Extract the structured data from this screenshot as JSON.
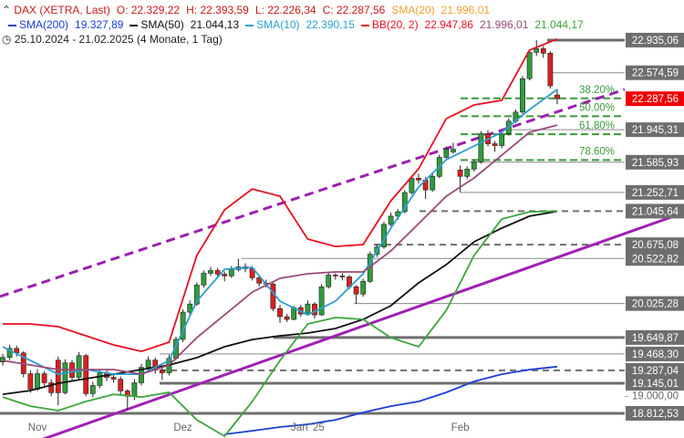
{
  "chart_data": {
    "type": "candlestick",
    "title": "DAX (XETRA, Last)",
    "ohlc_text": [
      "O: 22.329,22",
      "H: 22.393,59",
      "L: 22.226,34",
      "C: 22.287,56"
    ],
    "period": "25.10.2024 - 21.02.2025 (4 Monate, 1 Tag)",
    "categories": [
      null,
      null,
      null,
      null,
      null,
      "Nov",
      null,
      null,
      null,
      null,
      null,
      null,
      null,
      null,
      null,
      null,
      null,
      null,
      null,
      null,
      null,
      null,
      null,
      null,
      null,
      null,
      "Dez",
      null,
      null,
      null,
      null,
      null,
      null,
      null,
      null,
      null,
      null,
      null,
      null,
      null,
      null,
      null,
      null,
      null,
      "Jan '25",
      null,
      null,
      null,
      null,
      null,
      null,
      null,
      null,
      null,
      null,
      null,
      null,
      null,
      null,
      null,
      null,
      null,
      null,
      null,
      null,
      null,
      "Feb",
      null,
      null,
      null,
      null,
      null,
      null,
      null,
      null,
      null,
      null,
      null,
      null,
      null,
      null
    ],
    "open": [
      19380,
      19430,
      19530,
      19480,
      19250,
      19080,
      19250,
      19150,
      19400,
      19040,
      19370,
      19210,
      19450,
      19030,
      19120,
      19260,
      19210,
      19190,
      19060,
      19000,
      19150,
      19320,
      19400,
      19290,
      19260,
      19420,
      19630,
      19930,
      20020,
      20230,
      20360,
      20390,
      20350,
      20330,
      20400,
      20430,
      20410,
      20310,
      20250,
      20240,
      19970,
      19880,
      19850,
      19980,
      19910,
      20020,
      19900,
      20210,
      20340,
      20330,
      20320,
      20210,
      20130,
      20270,
      20570,
      20650,
      20900,
      20990,
      21040,
      21250,
      21410,
      21390,
      21280,
      21430,
      21640,
      21700,
      21500,
      21430,
      21510,
      21590,
      21900,
      21790,
      21770,
      21900,
      22040,
      22140,
      22510,
      22800,
      22840,
      22790,
      22329.22
    ],
    "high": [
      19470,
      19570,
      19560,
      19500,
      19290,
      19300,
      19280,
      19190,
      19440,
      19410,
      19400,
      19490,
      19470,
      19160,
      19300,
      19290,
      19250,
      19220,
      19080,
      19190,
      19360,
      19440,
      19430,
      19330,
      19460,
      19660,
      19960,
      20060,
      20260,
      20390,
      20430,
      20420,
      20380,
      20440,
      20520,
      20470,
      20440,
      20340,
      20290,
      20260,
      20010,
      19910,
      20000,
      20010,
      20060,
      20040,
      20240,
      20370,
      20360,
      20360,
      20340,
      20230,
      20300,
      20600,
      20680,
      20930,
      21030,
      21070,
      21280,
      21440,
      21460,
      21420,
      21460,
      21670,
      21760,
      21800,
      21550,
      21540,
      21620,
      21930,
      21940,
      21820,
      21930,
      22070,
      22170,
      22540,
      22830,
      22935.06,
      22870,
      22810,
      22393.59
    ],
    "low": [
      19340,
      19400,
      19440,
      19210,
      19040,
      19060,
      19110,
      19000,
      18900,
      19020,
      19170,
      19190,
      19000,
      18990,
      19090,
      19170,
      19150,
      19010,
      18850,
      18960,
      19120,
      19290,
      19250,
      19180,
      19230,
      19400,
      19600,
      19880,
      20000,
      20200,
      20330,
      20300,
      20270,
      20310,
      20380,
      20370,
      20280,
      20210,
      20200,
      19940,
      19810,
      19820,
      19840,
      19880,
      19890,
      19860,
      19890,
      20190,
      20290,
      20280,
      20180,
      20020,
      20100,
      20250,
      20540,
      20630,
      20880,
      20950,
      21020,
      21230,
      21350,
      21180,
      21260,
      21410,
      21620,
      21680,
      21252.71,
      21400,
      21480,
      21570,
      21760,
      21700,
      21740,
      21880,
      22020,
      22120,
      22490,
      22760,
      22740,
      22400,
      22226.34
    ],
    "close": [
      19430,
      19530,
      19480,
      19250,
      19080,
      19250,
      19150,
      19040,
      19040,
      19370,
      19210,
      19450,
      19030,
      19120,
      19260,
      19210,
      19190,
      19060,
      19000,
      19150,
      19320,
      19400,
      19290,
      19260,
      19420,
      19630,
      19930,
      20020,
      20230,
      20360,
      20390,
      20350,
      20330,
      20400,
      20430,
      20410,
      20310,
      20250,
      20240,
      19970,
      19880,
      19850,
      19980,
      19910,
      20020,
      19900,
      20210,
      20340,
      20330,
      20320,
      20210,
      20130,
      20270,
      20570,
      20650,
      20900,
      20990,
      21040,
      21250,
      21410,
      21390,
      21280,
      21430,
      21640,
      21730,
      21730,
      21430,
      21510,
      21590,
      21900,
      21790,
      21770,
      21900,
      22040,
      22140,
      22510,
      22800,
      22840,
      22790,
      22430,
      22287.56
    ],
    "last_label": "22.287,56",
    "last_color": "#f00000",
    "up_color": "#2f9c3c",
    "down_color": "#d8201e",
    "series": [
      {
        "name": "SMA(20)",
        "color": "#f0a030",
        "value_labels": [
          "21.996,01"
        ]
      },
      {
        "name": "SMA(200)",
        "color": "#1a3fd6",
        "value_labels": [
          "19.327,89"
        ],
        "x": [
          32,
          36,
          40,
          44,
          48,
          52,
          56,
          60,
          64,
          68,
          72,
          76,
          80
        ],
        "values": [
          18580,
          18620,
          18661,
          18691,
          18741,
          18822,
          18892,
          18943,
          19044,
          19165,
          19245,
          19296,
          19327.89
        ]
      },
      {
        "name": "SMA(50)",
        "color": "#111111",
        "value_labels": [
          "21.044,13"
        ],
        "x": [
          0,
          4,
          8,
          12,
          16,
          20,
          24,
          28,
          32,
          36,
          40,
          44,
          48,
          52,
          56,
          60,
          64,
          68,
          72,
          76,
          80
        ],
        "values": [
          19023,
          19064,
          19144,
          19195,
          19245,
          19296,
          19346,
          19427,
          19548,
          19628,
          19669,
          19699,
          19749,
          19850,
          20001,
          20253,
          20455,
          20707,
          20858,
          20990,
          21044.13
        ]
      },
      {
        "name": "SMA(10)",
        "color": "#2b9fd0",
        "value_labels": [
          "22.390,15"
        ],
        "x": [
          0,
          4,
          8,
          12,
          16,
          20,
          24,
          28,
          32,
          36,
          40,
          44,
          48,
          52,
          56,
          60,
          64,
          68,
          72,
          76,
          80
        ],
        "values": [
          19548,
          19396,
          19245,
          19296,
          19245,
          19245,
          19396,
          20052,
          20404,
          20425,
          20052,
          19900,
          20052,
          20354,
          20858,
          21312,
          21614,
          21765,
          21917,
          22168,
          22390.15
        ]
      },
      {
        "name": "BB(20, 2)",
        "colors": [
          "#e8101e",
          "#9b4a78",
          "#3aa53a"
        ],
        "value_labels": [
          "22.947,86",
          "21.996,01",
          "21.044,17"
        ],
        "x": [
          0,
          4,
          8,
          12,
          16,
          20,
          24,
          28,
          32,
          36,
          40,
          44,
          48,
          52,
          56,
          60,
          64,
          68,
          72,
          76,
          80
        ],
        "bands": [
          [
            19800,
            19800,
            19770,
            19669,
            19568,
            19497,
            19598,
            20556,
            21060,
            21291,
            21211,
            20737,
            20656,
            20677,
            21160,
            21513,
            22068,
            22219,
            22270,
            22824,
            22947.86
          ],
          [
            19396,
            19346,
            19296,
            19296,
            19296,
            19245,
            19346,
            19648,
            19900,
            20152,
            20304,
            20354,
            20374,
            20374,
            20606,
            20908,
            21211,
            21412,
            21664,
            21917,
            21996.01
          ],
          [
            18993,
            18892,
            18842,
            18943,
            19023,
            18993,
            19044,
            18741,
            18560,
            18943,
            19396,
            19800,
            19870,
            19850,
            19648,
            19548,
            19951,
            20556,
            20959,
            21039,
            21044.17
          ]
        ]
      }
    ],
    "levels": [
      {
        "value": 22935.06,
        "label": "22.935,06",
        "style": "thick"
      },
      {
        "value": 22574.59,
        "label": "22.574,59",
        "style": "thin"
      },
      {
        "value": 21945.31,
        "label": "21.945,31",
        "style": "thin"
      },
      {
        "value": 21585.93,
        "label": "21.585,93",
        "style": "thin"
      },
      {
        "value": 21252.71,
        "label": "21.252,71",
        "style": "thin"
      },
      {
        "value": 21045.64,
        "label": "21.045,64",
        "style": "dashed"
      },
      {
        "value": 20675.08,
        "label": "20.675,08",
        "style": "dashed"
      },
      {
        "value": 20522.82,
        "label": "20.522,82",
        "style": "thin"
      },
      {
        "value": 20025.28,
        "label": "20.025,28",
        "style": "thin"
      },
      {
        "value": 19649.87,
        "label": "19.649,87",
        "style": "thick"
      },
      {
        "value": 19468.3,
        "label": "19.468,30",
        "style": "thin"
      },
      {
        "value": 19287.04,
        "label": "19.287,04",
        "style": "dashed"
      },
      {
        "value": 19145.01,
        "label": "19.145,01",
        "style": "thick"
      },
      {
        "value": 18812.53,
        "label": "18.812,53",
        "style": "thick"
      }
    ],
    "fib_levels": [
      {
        "value": 22292,
        "label": "38.20%"
      },
      {
        "value": 22094,
        "label": "50.00%"
      },
      {
        "value": 21895,
        "label": "61.80%"
      },
      {
        "value": 21610,
        "label": "78.60%"
      }
    ],
    "fib_color": "#3a9a3a",
    "ylim": [
      18540,
      23378
    ],
    "yticks": [
      {
        "value": 19000,
        "label": "19.000,00"
      }
    ]
  }
}
